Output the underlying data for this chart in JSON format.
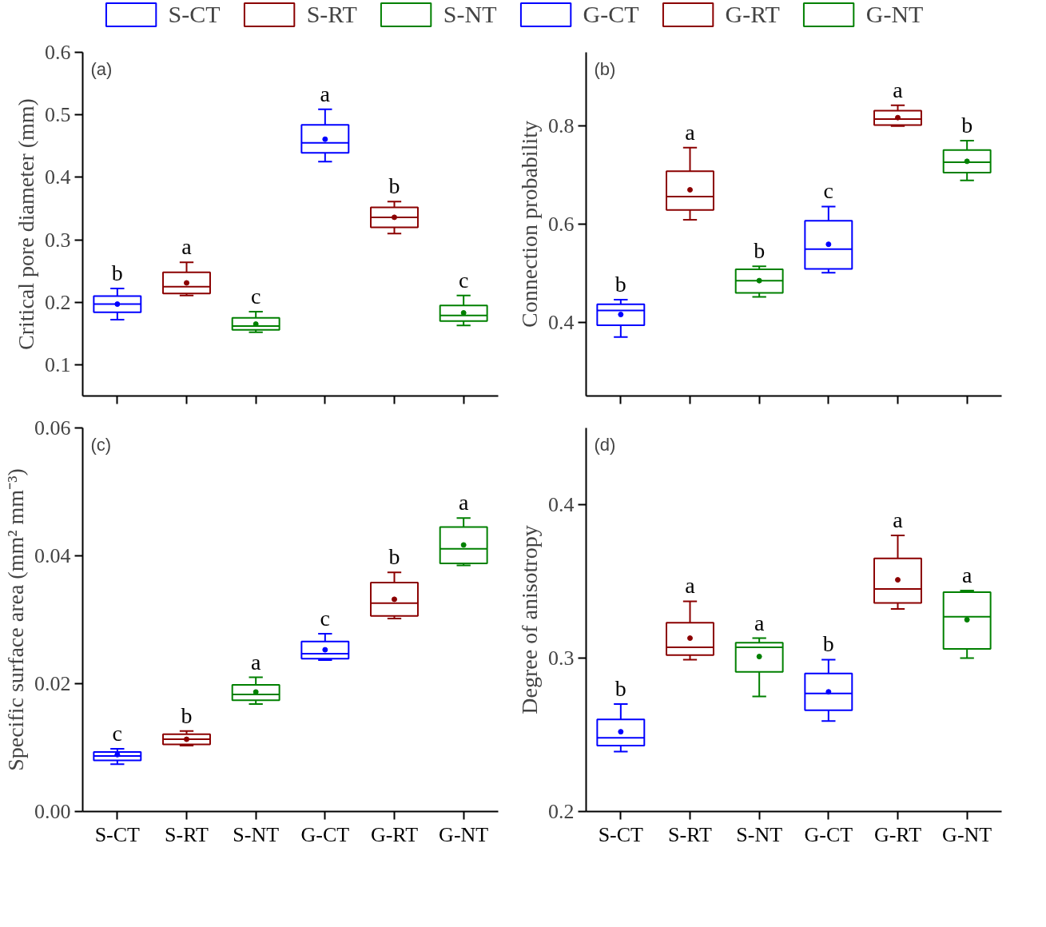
{
  "chart_data": [
    {
      "type": "box",
      "title": "(a)",
      "ylabel": "Critical pore diameter (mm)",
      "categories": [
        "S-CT",
        "S-RT",
        "S-NT",
        "G-CT",
        "G-RT",
        "G-NT"
      ],
      "series": [
        {
          "name": "S-CT",
          "color": "#0000ff",
          "boxes": [
            {
              "low": 0.172,
              "q1": 0.184,
              "median": 0.197,
              "q3": 0.21,
              "high": 0.222,
              "mean": 0.197
            },
            null,
            null,
            null,
            null,
            null
          ]
        },
        {
          "name": "S-RT",
          "color": "#8b0000",
          "boxes": [
            null,
            {
              "low": 0.211,
              "q1": 0.214,
              "median": 0.225,
              "q3": 0.248,
              "high": 0.264,
              "mean": 0.231
            },
            null,
            null,
            null,
            null
          ]
        },
        {
          "name": "S-NT",
          "color": "#008000",
          "boxes": [
            null,
            null,
            {
              "low": 0.152,
              "q1": 0.156,
              "median": 0.162,
              "q3": 0.175,
              "high": 0.185,
              "mean": 0.165
            },
            null,
            null,
            null
          ]
        },
        {
          "name": "G-CT",
          "color": "#0000ff",
          "boxes": [
            null,
            null,
            null,
            {
              "low": 0.425,
              "q1": 0.439,
              "median": 0.455,
              "q3": 0.484,
              "high": 0.509,
              "mean": 0.461
            },
            null,
            null
          ]
        },
        {
          "name": "G-RT",
          "color": "#8b0000",
          "boxes": [
            null,
            null,
            null,
            null,
            {
              "low": 0.31,
              "q1": 0.32,
              "median": 0.336,
              "q3": 0.352,
              "high": 0.361,
              "mean": 0.336
            },
            null
          ]
        },
        {
          "name": "G-NT",
          "color": "#008000",
          "boxes": [
            null,
            null,
            null,
            null,
            null,
            {
              "low": 0.163,
              "q1": 0.17,
              "median": 0.179,
              "q3": 0.195,
              "high": 0.211,
              "mean": 0.183
            }
          ]
        }
      ],
      "ylim": [
        0.05,
        0.6
      ],
      "yticks": [
        0.1,
        0.2,
        0.3,
        0.4,
        0.5,
        0.6
      ],
      "tick_labels": "y",
      "legend": "top",
      "grid": false,
      "annotations": [
        {
          "text": "b",
          "x": "S-CT",
          "y": 0.222
        },
        {
          "text": "a",
          "x": "S-RT",
          "y": 0.264
        },
        {
          "text": "c",
          "x": "S-NT",
          "y": 0.185
        },
        {
          "text": "a",
          "x": "G-CT",
          "y": 0.509
        },
        {
          "text": "b",
          "x": "G-RT",
          "y": 0.361
        },
        {
          "text": "c",
          "x": "G-NT",
          "y": 0.211
        }
      ]
    },
    {
      "type": "box",
      "title": "(b)",
      "ylabel": "Connection probability",
      "categories": [
        "S-CT",
        "S-RT",
        "S-NT",
        "G-CT",
        "G-RT",
        "G-NT"
      ],
      "series": [
        {
          "color": "#0000ff",
          "boxes": [
            {
              "low": 0.37,
              "q1": 0.394,
              "median": 0.424,
              "q3": 0.437,
              "high": 0.446,
              "mean": 0.416
            },
            null,
            null,
            null,
            null,
            null
          ]
        },
        {
          "color": "#8b0000",
          "boxes": [
            null,
            {
              "low": 0.609,
              "q1": 0.629,
              "median": 0.656,
              "q3": 0.708,
              "high": 0.756,
              "mean": 0.67
            },
            null,
            null,
            null,
            null
          ]
        },
        {
          "color": "#008000",
          "boxes": [
            null,
            null,
            {
              "low": 0.452,
              "q1": 0.46,
              "median": 0.485,
              "q3": 0.508,
              "high": 0.514,
              "mean": 0.485
            },
            null,
            null,
            null
          ]
        },
        {
          "color": "#0000ff",
          "boxes": [
            null,
            null,
            null,
            {
              "low": 0.501,
              "q1": 0.509,
              "median": 0.549,
              "q3": 0.607,
              "high": 0.636,
              "mean": 0.559
            },
            null,
            null
          ]
        },
        {
          "color": "#8b0000",
          "boxes": [
            null,
            null,
            null,
            null,
            {
              "low": 0.8,
              "q1": 0.802,
              "median": 0.814,
              "q3": 0.831,
              "high": 0.842,
              "mean": 0.817
            },
            null
          ]
        },
        {
          "color": "#008000",
          "boxes": [
            null,
            null,
            null,
            null,
            null,
            {
              "low": 0.689,
              "q1": 0.705,
              "median": 0.726,
              "q3": 0.751,
              "high": 0.77,
              "mean": 0.728
            }
          ]
        }
      ],
      "ylim": [
        0.25,
        0.95
      ],
      "yticks": [
        0.4,
        0.6,
        0.8
      ],
      "tick_labels": "y",
      "grid": false,
      "annotations": [
        {
          "text": "b",
          "x": "S-CT",
          "y": 0.446
        },
        {
          "text": "a",
          "x": "S-RT",
          "y": 0.756
        },
        {
          "text": "b",
          "x": "S-NT",
          "y": 0.514
        },
        {
          "text": "c",
          "x": "G-CT",
          "y": 0.636
        },
        {
          "text": "a",
          "x": "G-RT",
          "y": 0.842
        },
        {
          "text": "b",
          "x": "G-NT",
          "y": 0.77
        }
      ]
    },
    {
      "type": "box",
      "title": "(c)",
      "ylabel": "Specific surface area (mm² mm⁻³)",
      "categories": [
        "S-CT",
        "S-RT",
        "S-NT",
        "G-CT",
        "G-RT",
        "G-NT"
      ],
      "series": [
        {
          "color": "#0000ff",
          "boxes": [
            {
              "low": 0.0074,
              "q1": 0.008,
              "median": 0.0087,
              "q3": 0.0093,
              "high": 0.0098,
              "mean": 0.0089
            },
            null,
            null,
            null,
            null,
            null
          ]
        },
        {
          "color": "#8b0000",
          "boxes": [
            null,
            {
              "low": 0.0103,
              "q1": 0.0105,
              "median": 0.0113,
              "q3": 0.0121,
              "high": 0.0126,
              "mean": 0.0113
            },
            null,
            null,
            null,
            null
          ]
        },
        {
          "color": "#008000",
          "boxes": [
            null,
            null,
            {
              "low": 0.0168,
              "q1": 0.0174,
              "median": 0.0183,
              "q3": 0.0198,
              "high": 0.021,
              "mean": 0.0187
            },
            null,
            null,
            null
          ]
        },
        {
          "color": "#0000ff",
          "boxes": [
            null,
            null,
            null,
            {
              "low": 0.0237,
              "q1": 0.0239,
              "median": 0.0247,
              "q3": 0.0266,
              "high": 0.0278,
              "mean": 0.0253
            },
            null,
            null
          ]
        },
        {
          "color": "#8b0000",
          "boxes": [
            null,
            null,
            null,
            null,
            {
              "low": 0.0302,
              "q1": 0.0306,
              "median": 0.0326,
              "q3": 0.0358,
              "high": 0.0374,
              "mean": 0.0332
            },
            null
          ]
        },
        {
          "color": "#008000",
          "boxes": [
            null,
            null,
            null,
            null,
            null,
            {
              "low": 0.0385,
              "q1": 0.0388,
              "median": 0.0411,
              "q3": 0.0445,
              "high": 0.0459,
              "mean": 0.0417
            }
          ]
        }
      ],
      "ylim": [
        0,
        0.06
      ],
      "yticks": [
        {
          "value": 0,
          "label": "0.00"
        },
        {
          "value": 0.02,
          "label": "0.02"
        },
        {
          "value": 0.04,
          "label": "0.04"
        },
        {
          "value": 0.06,
          "label": "0.06"
        }
      ],
      "grid": false,
      "annotations": [
        {
          "text": "c",
          "x": "S-CT",
          "y": 0.0098
        },
        {
          "text": "b",
          "x": "S-RT",
          "y": 0.0126
        },
        {
          "text": "a",
          "x": "S-NT",
          "y": 0.021
        },
        {
          "text": "c",
          "x": "G-CT",
          "y": 0.0278
        },
        {
          "text": "b",
          "x": "G-RT",
          "y": 0.0374
        },
        {
          "text": "a",
          "x": "G-NT",
          "y": 0.0459
        }
      ]
    },
    {
      "type": "box",
      "title": "(d)",
      "ylabel": "Degree of anisotropy",
      "categories": [
        "S-CT",
        "S-RT",
        "S-NT",
        "G-CT",
        "G-RT",
        "G-NT"
      ],
      "series": [
        {
          "color": "#0000ff",
          "boxes": [
            {
              "low": 0.239,
              "q1": 0.243,
              "median": 0.248,
              "q3": 0.26,
              "high": 0.27,
              "mean": 0.252
            },
            null,
            null,
            null,
            null,
            null
          ]
        },
        {
          "color": "#8b0000",
          "boxes": [
            null,
            {
              "low": 0.299,
              "q1": 0.302,
              "median": 0.307,
              "q3": 0.323,
              "high": 0.337,
              "mean": 0.313
            },
            null,
            null,
            null,
            null
          ]
        },
        {
          "color": "#008000",
          "boxes": [
            null,
            null,
            {
              "low": 0.275,
              "q1": 0.291,
              "median": 0.307,
              "q3": 0.31,
              "high": 0.313,
              "mean": 0.301
            },
            null,
            null,
            null
          ]
        },
        {
          "color": "#0000ff",
          "boxes": [
            null,
            null,
            null,
            {
              "low": 0.259,
              "q1": 0.266,
              "median": 0.277,
              "q3": 0.29,
              "high": 0.299,
              "mean": 0.278
            },
            null,
            null
          ]
        },
        {
          "color": "#8b0000",
          "boxes": [
            null,
            null,
            null,
            null,
            {
              "low": 0.332,
              "q1": 0.336,
              "median": 0.345,
              "q3": 0.365,
              "high": 0.38,
              "mean": 0.351
            },
            null
          ]
        },
        {
          "color": "#008000",
          "boxes": [
            null,
            null,
            null,
            null,
            null,
            {
              "low": 0.3,
              "q1": 0.306,
              "median": 0.327,
              "q3": 0.343,
              "high": 0.344,
              "mean": 0.325
            }
          ]
        }
      ],
      "ylim": [
        0.2,
        0.45
      ],
      "yticks": [
        0.2,
        0.3,
        0.4
      ],
      "grid": false,
      "annotations": [
        {
          "text": "b",
          "x": "S-CT",
          "y": 0.27
        },
        {
          "text": "a",
          "x": "S-RT",
          "y": 0.337
        },
        {
          "text": "a",
          "x": "S-NT",
          "y": 0.313
        },
        {
          "text": "b",
          "x": "G-CT",
          "y": 0.299
        },
        {
          "text": "a",
          "x": "G-RT",
          "y": 0.38
        },
        {
          "text": "a",
          "x": "G-NT",
          "y": 0.344
        }
      ]
    }
  ]
}
